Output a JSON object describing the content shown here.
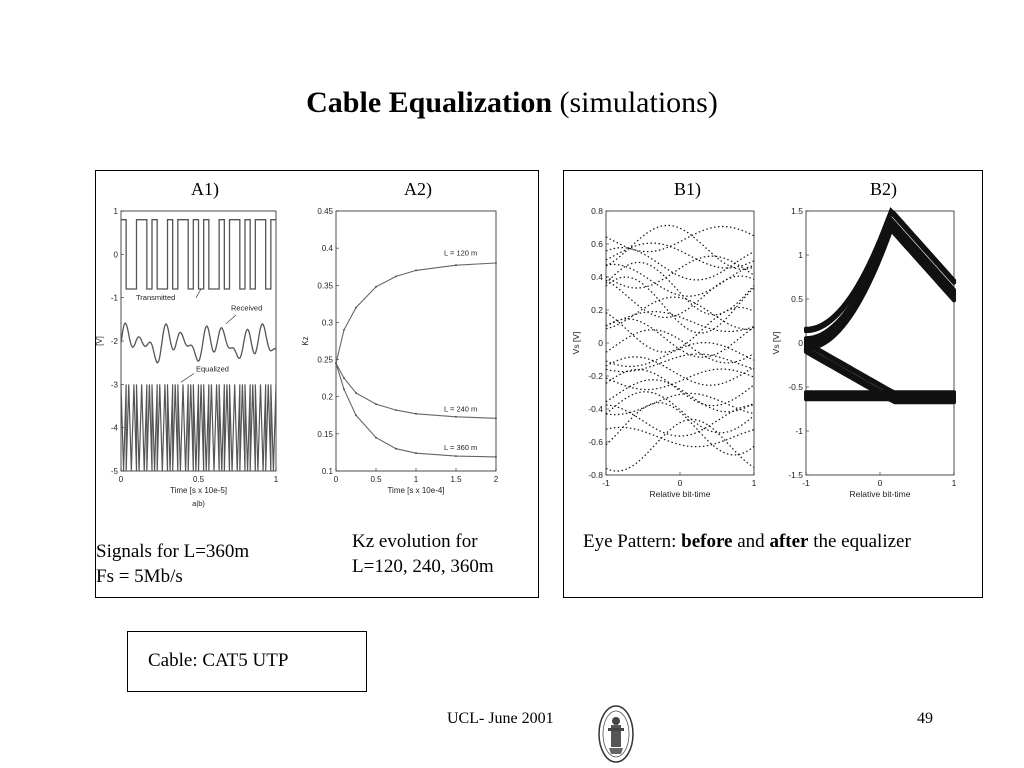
{
  "slide": {
    "title_bold": "Cable Equalization",
    "title_rest": "(simulations)",
    "footer": "UCL- June 2001",
    "page_number": "49"
  },
  "panel_a": {
    "label_a1": "A1)",
    "label_a2": "A2)",
    "caption_a1_line1": "Signals for L=360m",
    "caption_a1_line2": "Fs = 5Mb/s",
    "caption_a2_line1": "Kz evolution for",
    "caption_a2_line2": "L=120, 240, 360m",
    "plot_a1_mark": "a|b)"
  },
  "panel_b": {
    "label_b1": "B1)",
    "label_b2": "B2)",
    "caption_prefix": "Eye Pattern:",
    "caption_before": "before",
    "caption_and": "and",
    "caption_after": "after",
    "caption_suffix": "the equalizer"
  },
  "cable_note": "Cable: CAT5 UTP",
  "chart_data": [
    {
      "id": "A1",
      "type": "line",
      "xlabel": "Time  [s x 10e-5]",
      "ylabel": "[V]",
      "x_ticks": [
        "0",
        "0.5",
        "1"
      ],
      "y_ticks": [
        "1",
        "0",
        "-1",
        "-2",
        "-3",
        "-4",
        "-5"
      ],
      "xlim": [
        0,
        1
      ],
      "ylim": [
        -5,
        1
      ],
      "annotations": [
        "Transmitted",
        "Received",
        "Equalized"
      ],
      "series": [
        {
          "name": "Transmitted",
          "description_values": [
            0.8,
            -0.8
          ]
        },
        {
          "name": "Received",
          "description_values": [
            -1.5,
            -2.6
          ]
        },
        {
          "name": "Equalized",
          "description_values": [
            -3,
            -5
          ]
        }
      ]
    },
    {
      "id": "A2",
      "type": "line",
      "xlabel": "Time  [s x 10e-4]",
      "ylabel": "Kz",
      "x_ticks": [
        "0",
        "0.5",
        "1",
        "1.5",
        "2"
      ],
      "y_ticks": [
        "0.45",
        "0.4",
        "0.35",
        "0.3",
        "0.25",
        "0.2",
        "0.15",
        "0.1"
      ],
      "xlim": [
        0,
        2
      ],
      "ylim": [
        0.1,
        0.45
      ],
      "series": [
        {
          "name": "L = 120 m",
          "x": [
            0,
            0.1,
            0.25,
            0.5,
            0.75,
            1,
            1.5,
            2
          ],
          "y": [
            0.245,
            0.29,
            0.32,
            0.348,
            0.362,
            0.37,
            0.377,
            0.38
          ]
        },
        {
          "name": "L = 240 m",
          "x": [
            0,
            0.1,
            0.25,
            0.5,
            0.75,
            1,
            1.5,
            2
          ],
          "y": [
            0.245,
            0.225,
            0.205,
            0.19,
            0.182,
            0.177,
            0.173,
            0.171
          ]
        },
        {
          "name": "L = 360 m",
          "x": [
            0,
            0.1,
            0.25,
            0.5,
            0.75,
            1,
            1.5,
            2
          ],
          "y": [
            0.245,
            0.21,
            0.175,
            0.145,
            0.13,
            0.124,
            0.12,
            0.119
          ]
        }
      ]
    },
    {
      "id": "B1",
      "type": "scatter",
      "xlabel": "Relative bit-time",
      "ylabel": "Vs  [V]",
      "x_ticks": [
        "-1",
        "0",
        "1"
      ],
      "y_ticks": [
        "0.8",
        "0.6",
        "0.4",
        "0.2",
        "0",
        "-0.2",
        "-0.4",
        "-0.6",
        "-0.8"
      ],
      "xlim": [
        -1,
        1
      ],
      "ylim": [
        -0.8,
        0.8
      ]
    },
    {
      "id": "B2",
      "type": "scatter",
      "xlabel": "Relative bit-time",
      "ylabel": "Vs  [V]",
      "x_ticks": [
        "-1",
        "0",
        "1"
      ],
      "y_ticks": [
        "1.5",
        "1",
        "0.5",
        "0",
        "-0.5",
        "-1",
        "-1.5"
      ],
      "xlim": [
        -1,
        1
      ],
      "ylim": [
        -1.5,
        1.5
      ]
    }
  ]
}
